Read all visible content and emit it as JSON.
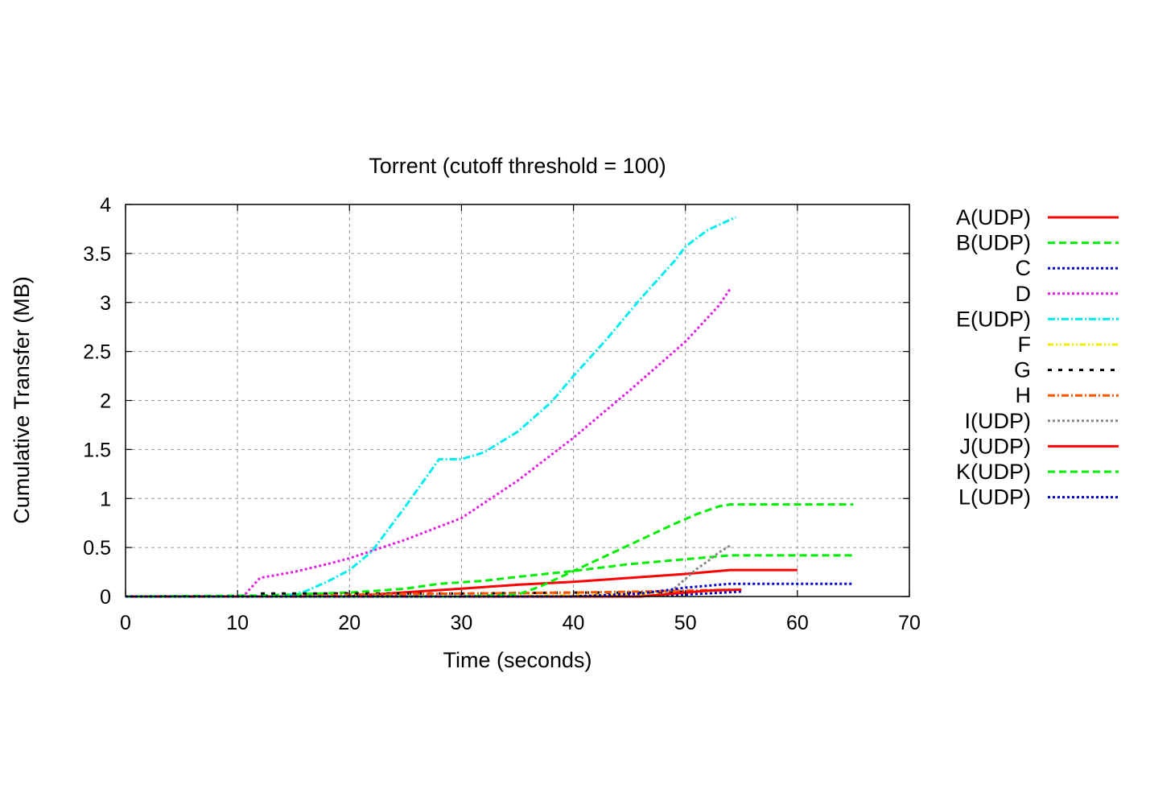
{
  "chart_data": {
    "type": "line",
    "title": "Torrent (cutoff threshold = 100)",
    "xlabel": "Time (seconds)",
    "ylabel": "Cumulative Transfer (MB)",
    "xlim": [
      0,
      70
    ],
    "ylim": [
      0,
      4
    ],
    "xticks": [
      "0",
      "10",
      "20",
      "30",
      "40",
      "50",
      "60",
      "70"
    ],
    "yticks": [
      "0",
      "0.5",
      "1",
      "1.5",
      "2",
      "2.5",
      "3",
      "3.5",
      "4"
    ],
    "grid": true,
    "legend_position": "right-outside",
    "series": [
      {
        "name": "A(UDP)",
        "color": "#ff0000",
        "dash": "solid",
        "x": [
          0,
          20,
          22,
          26,
          30,
          35,
          40,
          45,
          50,
          54,
          60
        ],
        "y": [
          0,
          0,
          0.02,
          0.05,
          0.08,
          0.12,
          0.15,
          0.19,
          0.23,
          0.27,
          0.27
        ]
      },
      {
        "name": "B(UDP)",
        "color": "#00ee00",
        "dash": "dash",
        "x": [
          0,
          12,
          20,
          25,
          28,
          32,
          35,
          40,
          45,
          50,
          54,
          65
        ],
        "y": [
          0,
          0.01,
          0.04,
          0.08,
          0.13,
          0.16,
          0.2,
          0.26,
          0.33,
          0.38,
          0.42,
          0.42
        ]
      },
      {
        "name": "C",
        "color": "#0000cc",
        "dash": "dot",
        "x": [
          0,
          30,
          45,
          50,
          55
        ],
        "y": [
          0,
          0,
          0,
          0.02,
          0.05
        ]
      },
      {
        "name": "D",
        "color": "#e020e0",
        "dash": "dot",
        "x": [
          0,
          10.5,
          12,
          15,
          18,
          20,
          25,
          30,
          35,
          40,
          45,
          50,
          53,
          54
        ],
        "y": [
          0,
          0,
          0.19,
          0.25,
          0.33,
          0.39,
          0.58,
          0.8,
          1.18,
          1.62,
          2.1,
          2.6,
          2.97,
          3.14
        ]
      },
      {
        "name": "E(UDP)",
        "color": "#00eeee",
        "dash": "dashdot",
        "x": [
          0,
          14,
          16,
          18,
          20,
          22,
          25,
          28,
          30,
          32,
          35,
          38,
          40,
          43,
          46,
          49,
          50,
          52,
          54.5
        ],
        "y": [
          0,
          0,
          0.05,
          0.15,
          0.27,
          0.46,
          0.92,
          1.4,
          1.4,
          1.47,
          1.68,
          1.98,
          2.25,
          2.63,
          3.04,
          3.42,
          3.57,
          3.74,
          3.87
        ]
      },
      {
        "name": "F",
        "color": "#eeee00",
        "dash": "dashdotdot",
        "x": [
          0,
          30,
          45,
          50,
          54
        ],
        "y": [
          0,
          0,
          0.02,
          0.04,
          0.07
        ]
      },
      {
        "name": "G",
        "color": "#000000",
        "dash": "dashsparse",
        "x": [
          0,
          11.5,
          12,
          20,
          30,
          40,
          46,
          50,
          54
        ],
        "y": [
          0,
          0,
          0.03,
          0.03,
          0.03,
          0.04,
          0.04,
          0.05,
          0.07
        ]
      },
      {
        "name": "H",
        "color": "#ff5500",
        "dash": "dashdot",
        "x": [
          0,
          15,
          20,
          30,
          40,
          46,
          50,
          54
        ],
        "y": [
          0,
          0,
          0.02,
          0.03,
          0.04,
          0.05,
          0.06,
          0.07
        ]
      },
      {
        "name": "I(UDP)",
        "color": "#888888",
        "dash": "dot",
        "x": [
          0,
          45,
          48,
          49,
          50,
          51,
          52,
          53,
          54
        ],
        "y": [
          0,
          0,
          0.02,
          0.08,
          0.18,
          0.28,
          0.36,
          0.45,
          0.52
        ]
      },
      {
        "name": "J(UDP)",
        "color": "#ff0000",
        "dash": "solid",
        "x": [
          0,
          40,
          46,
          48,
          50,
          52,
          55
        ],
        "y": [
          0,
          0,
          0,
          0.02,
          0.04,
          0.06,
          0.07
        ]
      },
      {
        "name": "K(UDP)",
        "color": "#00ee00",
        "dash": "dash",
        "x": [
          0,
          30,
          35,
          37,
          40,
          43,
          46,
          49,
          51,
          53,
          54,
          65
        ],
        "y": [
          0,
          0,
          0.02,
          0.1,
          0.26,
          0.42,
          0.58,
          0.74,
          0.84,
          0.92,
          0.94,
          0.94
        ]
      },
      {
        "name": "L(UDP)",
        "color": "#0000cc",
        "dash": "dot",
        "x": [
          0,
          40,
          46,
          48,
          50,
          52,
          54,
          65
        ],
        "y": [
          0,
          0,
          0.03,
          0.06,
          0.09,
          0.11,
          0.13,
          0.13
        ]
      }
    ]
  }
}
